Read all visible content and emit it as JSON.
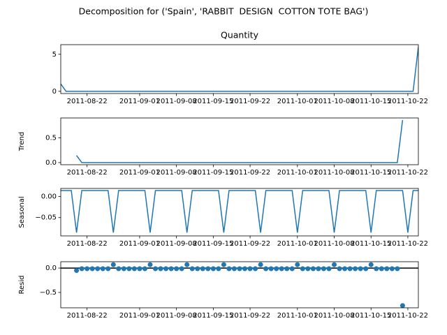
{
  "title": "Decomposition for ('Spain', 'RABBIT  DESIGN  COTTON TOTE BAG')",
  "chart_data": [
    {
      "type": "line",
      "title": "Quantity",
      "color": "#1f77b4",
      "x": [
        "2011-08-17",
        "2011-08-18",
        "2011-08-19",
        "2011-08-20",
        "2011-08-21",
        "2011-08-22",
        "2011-08-23",
        "2011-08-24",
        "2011-08-25",
        "2011-08-26",
        "2011-08-27",
        "2011-08-28",
        "2011-08-29",
        "2011-08-30",
        "2011-08-31",
        "2011-09-01",
        "2011-09-02",
        "2011-09-03",
        "2011-09-04",
        "2011-09-05",
        "2011-09-06",
        "2011-09-07",
        "2011-09-08",
        "2011-09-09",
        "2011-09-10",
        "2011-09-11",
        "2011-09-12",
        "2011-09-13",
        "2011-09-14",
        "2011-09-15",
        "2011-09-16",
        "2011-09-17",
        "2011-09-18",
        "2011-09-19",
        "2011-09-20",
        "2011-09-21",
        "2011-09-22",
        "2011-09-23",
        "2011-09-24",
        "2011-09-25",
        "2011-09-26",
        "2011-09-27",
        "2011-09-28",
        "2011-09-29",
        "2011-09-30",
        "2011-10-01",
        "2011-10-02",
        "2011-10-03",
        "2011-10-04",
        "2011-10-05",
        "2011-10-06",
        "2011-10-07",
        "2011-10-08",
        "2011-10-09",
        "2011-10-10",
        "2011-10-11",
        "2011-10-12",
        "2011-10-13",
        "2011-10-14",
        "2011-10-15",
        "2011-10-16",
        "2011-10-17",
        "2011-10-18",
        "2011-10-19",
        "2011-10-20",
        "2011-10-21",
        "2011-10-22",
        "2011-10-23",
        "2011-10-24"
      ],
      "values": [
        1,
        0,
        0,
        0,
        0,
        0,
        0,
        0,
        0,
        0,
        0,
        0,
        0,
        0,
        0,
        0,
        0,
        0,
        0,
        0,
        0,
        0,
        0,
        0,
        0,
        0,
        0,
        0,
        0,
        0,
        0,
        0,
        0,
        0,
        0,
        0,
        0,
        0,
        0,
        0,
        0,
        0,
        0,
        0,
        0,
        0,
        0,
        0,
        0,
        0,
        0,
        0,
        0,
        0,
        0,
        0,
        0,
        0,
        0,
        0,
        0,
        0,
        0,
        0,
        0,
        0,
        0,
        0,
        6
      ],
      "xlim": [
        "2011-08-17",
        "2011-10-24"
      ],
      "ylim": [
        -0.3,
        6.3
      ],
      "yticks": [
        0,
        5
      ],
      "xticks": [
        "2011-08-22",
        "2011-09-01",
        "2011-09-08",
        "2011-09-15",
        "2011-09-22",
        "2011-10-01",
        "2011-10-08",
        "2011-10-15",
        "2011-10-22"
      ]
    },
    {
      "type": "line",
      "ylabel": "Trend",
      "color": "#1f77b4",
      "x": [
        "2011-08-17",
        "2011-08-18",
        "2011-08-19",
        "2011-08-20",
        "2011-08-21",
        "2011-08-22",
        "2011-08-23",
        "2011-08-24",
        "2011-08-25",
        "2011-08-26",
        "2011-08-27",
        "2011-08-28",
        "2011-08-29",
        "2011-08-30",
        "2011-08-31",
        "2011-09-01",
        "2011-09-02",
        "2011-09-03",
        "2011-09-04",
        "2011-09-05",
        "2011-09-06",
        "2011-09-07",
        "2011-09-08",
        "2011-09-09",
        "2011-09-10",
        "2011-09-11",
        "2011-09-12",
        "2011-09-13",
        "2011-09-14",
        "2011-09-15",
        "2011-09-16",
        "2011-09-17",
        "2011-09-18",
        "2011-09-19",
        "2011-09-20",
        "2011-09-21",
        "2011-09-22",
        "2011-09-23",
        "2011-09-24",
        "2011-09-25",
        "2011-09-26",
        "2011-09-27",
        "2011-09-28",
        "2011-09-29",
        "2011-09-30",
        "2011-10-01",
        "2011-10-02",
        "2011-10-03",
        "2011-10-04",
        "2011-10-05",
        "2011-10-06",
        "2011-10-07",
        "2011-10-08",
        "2011-10-09",
        "2011-10-10",
        "2011-10-11",
        "2011-10-12",
        "2011-10-13",
        "2011-10-14",
        "2011-10-15",
        "2011-10-16",
        "2011-10-17",
        "2011-10-18",
        "2011-10-19",
        "2011-10-20",
        "2011-10-21",
        "2011-10-22",
        "2011-10-23",
        "2011-10-24"
      ],
      "values": [
        null,
        null,
        null,
        0.143,
        0,
        0,
        0,
        0,
        0,
        0,
        0,
        0,
        0,
        0,
        0,
        0,
        0,
        0,
        0,
        0,
        0,
        0,
        0,
        0,
        0,
        0,
        0,
        0,
        0,
        0,
        0,
        0,
        0,
        0,
        0,
        0,
        0,
        0,
        0,
        0,
        0,
        0,
        0,
        0,
        0,
        0,
        0,
        0,
        0,
        0,
        0,
        0,
        0,
        0,
        0,
        0,
        0,
        0,
        0,
        0,
        0,
        0,
        0,
        0,
        0,
        0.857,
        null,
        null,
        null
      ],
      "xlim": [
        "2011-08-17",
        "2011-10-24"
      ],
      "ylim": [
        -0.043,
        0.9
      ],
      "yticks": [
        {
          "value": 0,
          "label": "0.0"
        },
        0.5
      ],
      "xticks": [
        "2011-08-22",
        "2011-09-01",
        "2011-09-08",
        "2011-09-15",
        "2011-09-22",
        "2011-10-01",
        "2011-10-08",
        "2011-10-15",
        "2011-10-22"
      ]
    },
    {
      "type": "line",
      "ylabel": "Seasonal",
      "color": "#1f77b4",
      "x": [
        "2011-08-17",
        "2011-08-18",
        "2011-08-19",
        "2011-08-20",
        "2011-08-21",
        "2011-08-22",
        "2011-08-23",
        "2011-08-24",
        "2011-08-25",
        "2011-08-26",
        "2011-08-27",
        "2011-08-28",
        "2011-08-29",
        "2011-08-30",
        "2011-08-31",
        "2011-09-01",
        "2011-09-02",
        "2011-09-03",
        "2011-09-04",
        "2011-09-05",
        "2011-09-06",
        "2011-09-07",
        "2011-09-08",
        "2011-09-09",
        "2011-09-10",
        "2011-09-11",
        "2011-09-12",
        "2011-09-13",
        "2011-09-14",
        "2011-09-15",
        "2011-09-16",
        "2011-09-17",
        "2011-09-18",
        "2011-09-19",
        "2011-09-20",
        "2011-09-21",
        "2011-09-22",
        "2011-09-23",
        "2011-09-24",
        "2011-09-25",
        "2011-09-26",
        "2011-09-27",
        "2011-09-28",
        "2011-09-29",
        "2011-09-30",
        "2011-10-01",
        "2011-10-02",
        "2011-10-03",
        "2011-10-04",
        "2011-10-05",
        "2011-10-06",
        "2011-10-07",
        "2011-10-08",
        "2011-10-09",
        "2011-10-10",
        "2011-10-11",
        "2011-10-12",
        "2011-10-13",
        "2011-10-14",
        "2011-10-15",
        "2011-10-16",
        "2011-10-17",
        "2011-10-18",
        "2011-10-19",
        "2011-10-20",
        "2011-10-21",
        "2011-10-22",
        "2011-10-23",
        "2011-10-24"
      ],
      "values": [
        0.0143,
        0.0143,
        0.0143,
        -0.0857,
        0.0143,
        0.0143,
        0.0143,
        0.0143,
        0.0143,
        0.0143,
        -0.0857,
        0.0143,
        0.0143,
        0.0143,
        0.0143,
        0.0143,
        0.0143,
        -0.0857,
        0.0143,
        0.0143,
        0.0143,
        0.0143,
        0.0143,
        0.0143,
        -0.0857,
        0.0143,
        0.0143,
        0.0143,
        0.0143,
        0.0143,
        0.0143,
        -0.0857,
        0.0143,
        0.0143,
        0.0143,
        0.0143,
        0.0143,
        0.0143,
        -0.0857,
        0.0143,
        0.0143,
        0.0143,
        0.0143,
        0.0143,
        0.0143,
        -0.0857,
        0.0143,
        0.0143,
        0.0143,
        0.0143,
        0.0143,
        0.0143,
        -0.0857,
        0.0143,
        0.0143,
        0.0143,
        0.0143,
        0.0143,
        0.0143,
        -0.0857,
        0.0143,
        0.0143,
        0.0143,
        0.0143,
        0.0143,
        0.0143,
        -0.0857,
        0.0143,
        0.0143
      ],
      "xlim": [
        "2011-08-17",
        "2011-10-24"
      ],
      "ylim": [
        -0.0936,
        0.0193
      ],
      "yticks": [
        {
          "value": -0.05,
          "label": "−0.05"
        },
        {
          "value": 0,
          "label": "0.00"
        }
      ],
      "xticks": [
        "2011-08-22",
        "2011-09-01",
        "2011-09-08",
        "2011-09-15",
        "2011-09-22",
        "2011-10-01",
        "2011-10-08",
        "2011-10-15",
        "2011-10-22"
      ]
    },
    {
      "type": "scatter",
      "ylabel": "Resid",
      "color": "#1f77b4",
      "hline": 0,
      "x": [
        "2011-08-17",
        "2011-08-18",
        "2011-08-19",
        "2011-08-20",
        "2011-08-21",
        "2011-08-22",
        "2011-08-23",
        "2011-08-24",
        "2011-08-25",
        "2011-08-26",
        "2011-08-27",
        "2011-08-28",
        "2011-08-29",
        "2011-08-30",
        "2011-08-31",
        "2011-09-01",
        "2011-09-02",
        "2011-09-03",
        "2011-09-04",
        "2011-09-05",
        "2011-09-06",
        "2011-09-07",
        "2011-09-08",
        "2011-09-09",
        "2011-09-10",
        "2011-09-11",
        "2011-09-12",
        "2011-09-13",
        "2011-09-14",
        "2011-09-15",
        "2011-09-16",
        "2011-09-17",
        "2011-09-18",
        "2011-09-19",
        "2011-09-20",
        "2011-09-21",
        "2011-09-22",
        "2011-09-23",
        "2011-09-24",
        "2011-09-25",
        "2011-09-26",
        "2011-09-27",
        "2011-09-28",
        "2011-09-29",
        "2011-09-30",
        "2011-10-01",
        "2011-10-02",
        "2011-10-03",
        "2011-10-04",
        "2011-10-05",
        "2011-10-06",
        "2011-10-07",
        "2011-10-08",
        "2011-10-09",
        "2011-10-10",
        "2011-10-11",
        "2011-10-12",
        "2011-10-13",
        "2011-10-14",
        "2011-10-15",
        "2011-10-16",
        "2011-10-17",
        "2011-10-18",
        "2011-10-19",
        "2011-10-20",
        "2011-10-21",
        "2011-10-22",
        "2011-10-23",
        "2011-10-24"
      ],
      "values": [
        null,
        null,
        null,
        -0.05,
        -0.014,
        -0.014,
        -0.014,
        -0.014,
        -0.014,
        -0.014,
        0.07,
        -0.014,
        -0.014,
        -0.014,
        -0.014,
        -0.014,
        -0.014,
        0.07,
        -0.014,
        -0.014,
        -0.014,
        -0.014,
        -0.014,
        -0.014,
        0.07,
        -0.014,
        -0.014,
        -0.014,
        -0.014,
        -0.014,
        -0.014,
        0.07,
        -0.014,
        -0.014,
        -0.014,
        -0.014,
        -0.014,
        -0.014,
        0.07,
        -0.014,
        -0.014,
        -0.014,
        -0.014,
        -0.014,
        -0.014,
        0.07,
        -0.014,
        -0.014,
        -0.014,
        -0.014,
        -0.014,
        -0.014,
        0.07,
        -0.014,
        -0.014,
        -0.014,
        -0.014,
        -0.014,
        -0.014,
        0.07,
        -0.014,
        -0.014,
        -0.014,
        -0.014,
        -0.014,
        -0.77,
        null,
        null,
        null
      ],
      "xlim": [
        "2011-08-17",
        "2011-10-24"
      ],
      "ylim": [
        -0.815,
        0.13
      ],
      "yticks": [
        {
          "value": -0.5,
          "label": "−0.5"
        },
        {
          "value": 0,
          "label": "0.0"
        }
      ],
      "xticks": [
        "2011-08-22",
        "2011-09-01",
        "2011-09-08",
        "2011-09-15",
        "2011-09-22",
        "2011-10-01",
        "2011-10-08",
        "2011-10-15",
        "2011-10-22"
      ]
    }
  ]
}
